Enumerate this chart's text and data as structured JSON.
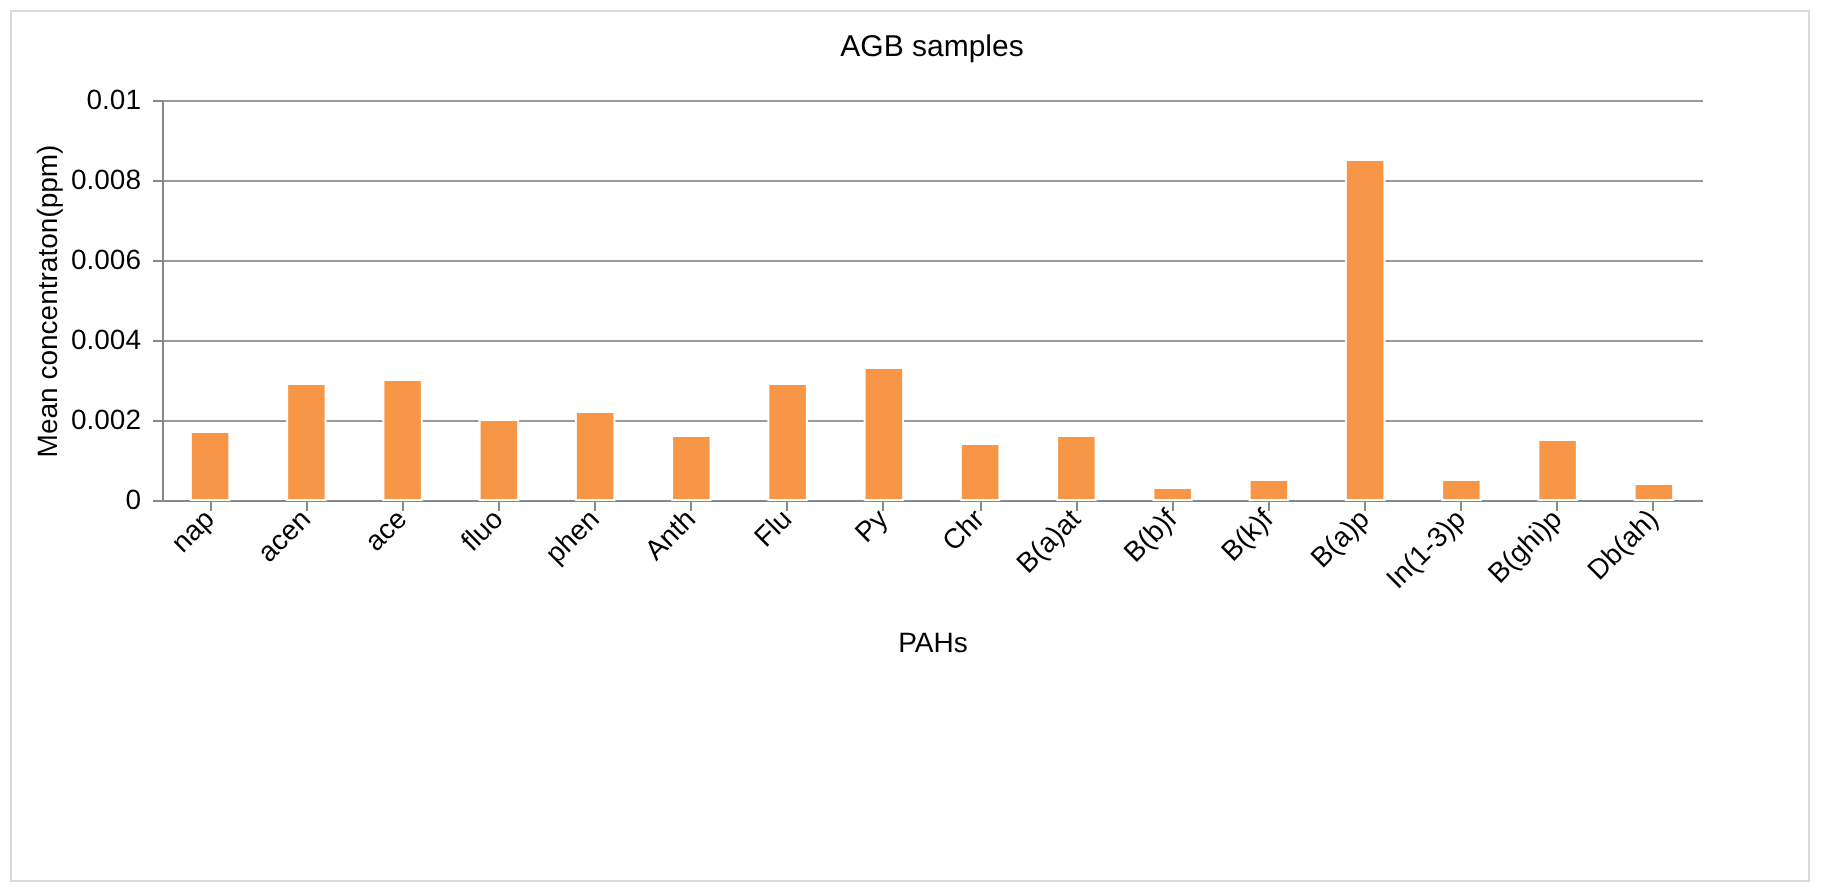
{
  "chart_data": {
    "type": "bar",
    "title": "AGB samples",
    "xlabel": "PAHs",
    "ylabel": "Mean concentraton(ppm)",
    "categories": [
      "nap",
      "acen",
      "ace",
      "fluo",
      "phen",
      "Anth",
      "Flu",
      "Py",
      "Chr",
      "B(a)at",
      "B(b)f",
      "B(k)f",
      "B(a)p",
      "In(1-3)p",
      "B(ghi)p",
      "Db(ah)"
    ],
    "values": [
      0.0017,
      0.0029,
      0.003,
      0.002,
      0.0022,
      0.0016,
      0.0029,
      0.0033,
      0.0014,
      0.0016,
      0.0003,
      0.0005,
      0.0085,
      0.0005,
      0.0015,
      0.0004
    ],
    "color": "#f79646",
    "ylim": [
      0,
      0.01
    ],
    "yticks": [
      0,
      0.002,
      0.004,
      0.006,
      0.008,
      0.01
    ],
    "grid": "y"
  }
}
